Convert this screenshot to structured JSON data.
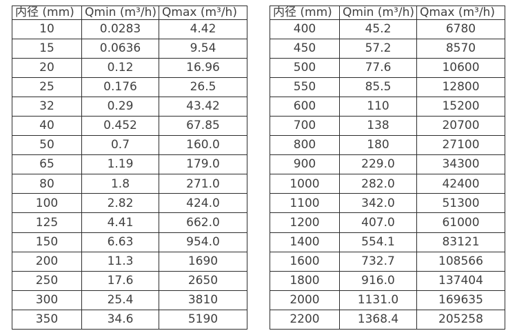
{
  "style": {
    "background_color": "#ffffff",
    "border_color": "#2b2b2b",
    "text_color": "#404040"
  },
  "tables": [
    {
      "name": "flow-rate-table-dn10-350",
      "headers": [
        "内径 (mm)",
        "Qmin (m³/h)",
        "Qmax (m³/h)"
      ],
      "rows": [
        [
          "10",
          "0.0283",
          "4.42"
        ],
        [
          "15",
          "0.0636",
          "9.54"
        ],
        [
          "20",
          "0.12",
          "16.96"
        ],
        [
          "25",
          "0.176",
          "26.5"
        ],
        [
          "32",
          "0.29",
          "43.42"
        ],
        [
          "40",
          "0.452",
          "67.85"
        ],
        [
          "50",
          "0.7",
          "160.0"
        ],
        [
          "65",
          "1.19",
          "179.0"
        ],
        [
          "80",
          "1.8",
          "271.0"
        ],
        [
          "100",
          "2.82",
          "424.0"
        ],
        [
          "125",
          "4.41",
          "662.0"
        ],
        [
          "150",
          "6.63",
          "954.0"
        ],
        [
          "200",
          "11.3",
          "1690"
        ],
        [
          "250",
          "17.6",
          "2650"
        ],
        [
          "300",
          "25.4",
          "3810"
        ],
        [
          "350",
          "34.6",
          "5190"
        ]
      ]
    },
    {
      "name": "flow-rate-table-dn400-2200",
      "headers": [
        "内径 (mm)",
        "Qmin (m³/h)",
        "Qmax (m³/h)"
      ],
      "rows": [
        [
          "400",
          "45.2",
          "6780"
        ],
        [
          "450",
          "57.2",
          "8570"
        ],
        [
          "500",
          "77.6",
          "10600"
        ],
        [
          "550",
          "85.5",
          "12800"
        ],
        [
          "600",
          "110",
          "15200"
        ],
        [
          "700",
          "138",
          "20700"
        ],
        [
          "800",
          "180",
          "27100"
        ],
        [
          "900",
          "229.0",
          "34300"
        ],
        [
          "1000",
          "282.0",
          "42400"
        ],
        [
          "1100",
          "342.0",
          "51300"
        ],
        [
          "1200",
          "407.0",
          "61000"
        ],
        [
          "1400",
          "554.1",
          "83121"
        ],
        [
          "1600",
          "732.7",
          "108566"
        ],
        [
          "1800",
          "916.0",
          "137404"
        ],
        [
          "2000",
          "1131.0",
          "169635"
        ],
        [
          "2200",
          "1368.4",
          "205258"
        ]
      ]
    }
  ]
}
